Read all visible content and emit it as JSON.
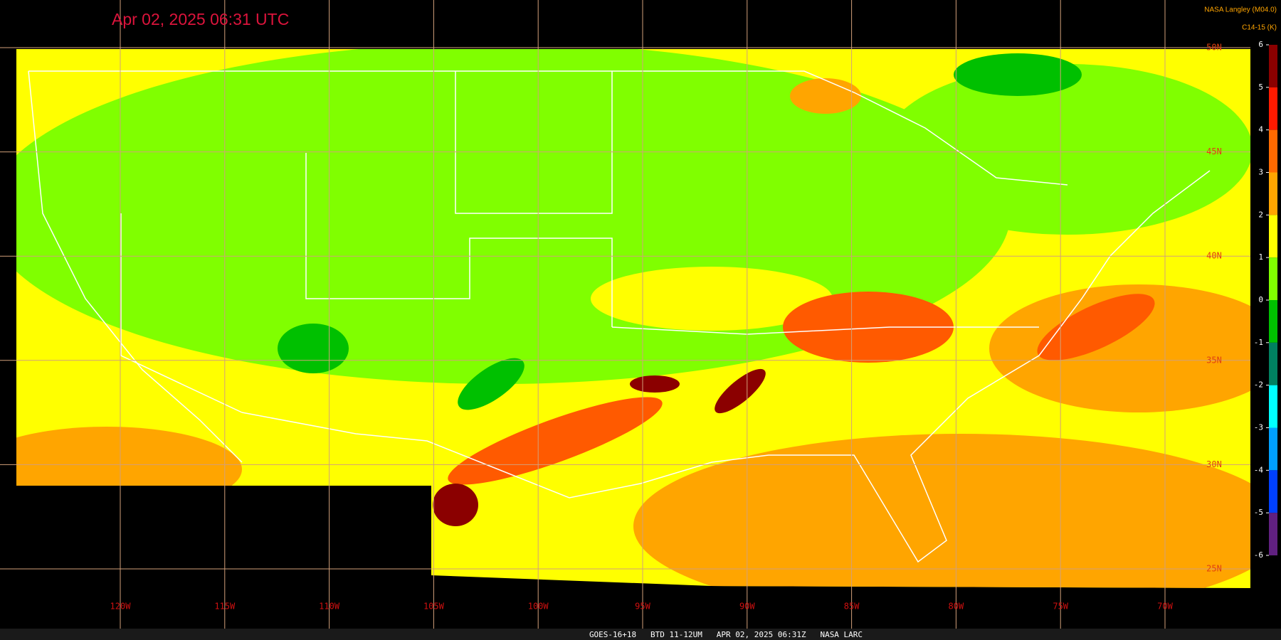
{
  "title": "Apr 02, 2025 06:31 UTC",
  "credit": "NASA Langley (M04.0)",
  "product": "C14-15 (K)",
  "footer": "GOES-16+18   BTD 11-12UM   APR 02, 2025 06:31Z   NASA LARC",
  "longitudes": [
    "120W",
    "115W",
    "110W",
    "105W",
    "100W",
    "95W",
    "90W",
    "85W",
    "80W",
    "75W",
    "70W"
  ],
  "latitudes": [
    "50N",
    "45N",
    "40N",
    "35N",
    "30N",
    "25N"
  ],
  "colorbar": {
    "ticks": [
      6,
      5,
      4,
      3,
      2,
      1,
      0,
      -1,
      -2,
      -3,
      -4,
      -5,
      -6
    ],
    "colors": [
      "#8b0000",
      "#ff1a00",
      "#ff6a00",
      "#ffa500",
      "#ffff00",
      "#80ff00",
      "#00c000",
      "#008060",
      "#00ffff",
      "#00a0ff",
      "#0040ff",
      "#602080"
    ]
  }
}
